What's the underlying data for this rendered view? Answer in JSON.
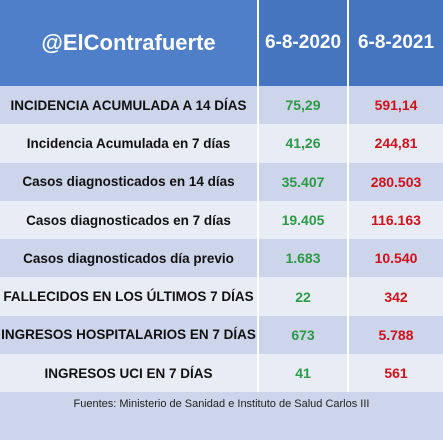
{
  "header": {
    "brand": "@ElContrafuerte",
    "col1": "6-8-2020",
    "col2": "6-8-2021"
  },
  "rows": [
    {
      "label": "INCIDENCIA ACUMULADA A 14 DÍAS",
      "v2020": "75,29",
      "v2021": "591,14"
    },
    {
      "label": "Incidencia Acumulada en 7 días",
      "v2020": "41,26",
      "v2021": "244,81"
    },
    {
      "label": "Casos diagnosticados en 14 días",
      "v2020": "35.407",
      "v2021": "280.503"
    },
    {
      "label": "Casos diagnosticados en 7 días",
      "v2020": "19.405",
      "v2021": "116.163"
    },
    {
      "label": "Casos diagnosticados día previo",
      "v2020": "1.683",
      "v2021": "10.540"
    },
    {
      "label": "FALLECIDOS EN LOS ÚLTIMOS 7 DÍAS",
      "v2020": "22",
      "v2021": "342"
    },
    {
      "label": "INGRESOS HOSPITALARIOS EN 7 DÍAS",
      "v2020": "673",
      "v2021": "5.788"
    },
    {
      "label": "INGRESOS UCI EN 7 DÍAS",
      "v2020": "41",
      "v2021": "561"
    }
  ],
  "footer": "Fuentes: Ministerio de Sanidad e Instituto de Salud Carlos III",
  "colors": {
    "header_brand_bg": "#4f7fc8",
    "header_date_bg": "#4675c0",
    "row_dark": "#ccd5e9",
    "row_light": "#e8ecf5",
    "value_2020": "#2e9a48",
    "value_2021": "#d0111b"
  }
}
